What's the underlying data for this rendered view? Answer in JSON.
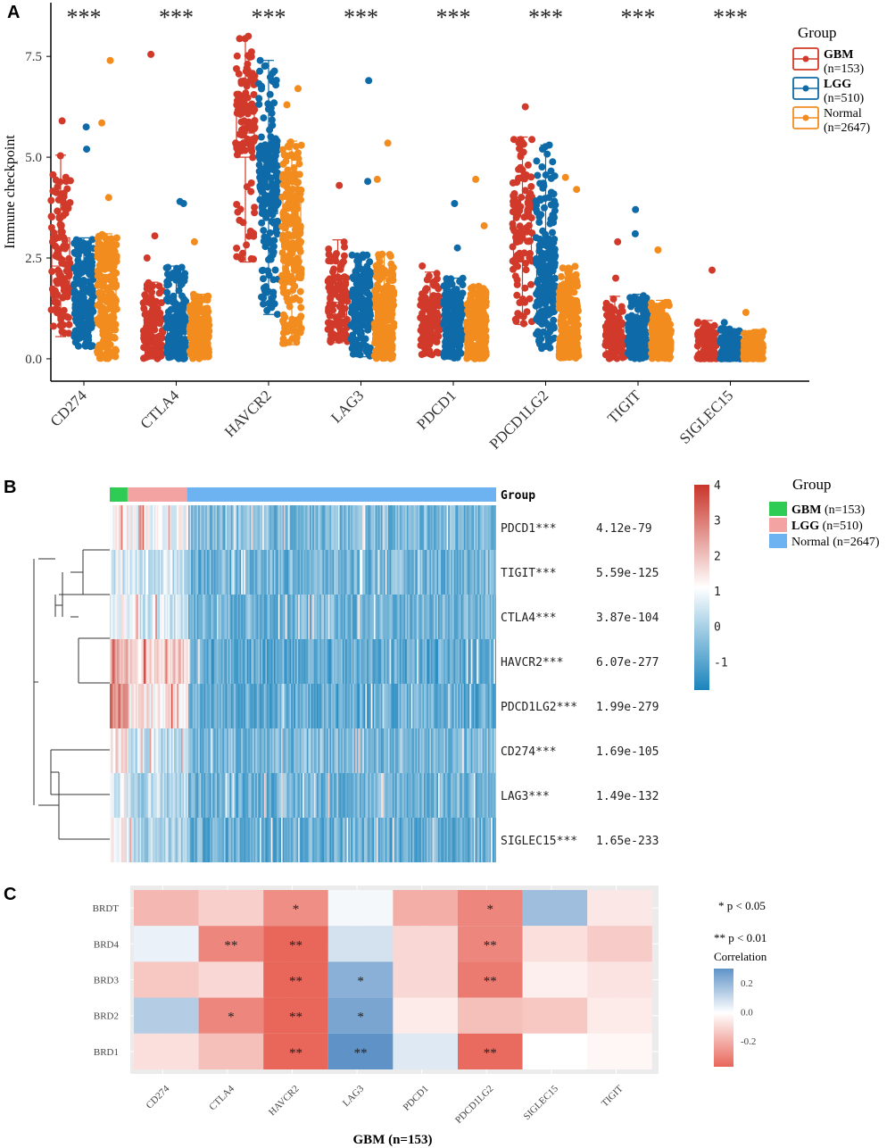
{
  "panels": {
    "a": "A",
    "b": "B",
    "c": "C"
  },
  "colors": {
    "GBM": "#d13a2a",
    "LGG": "#0f6aa8",
    "Normal": "#f28c1e",
    "GBM_bar": "#2ecc55",
    "LGG_bar": "#f4a3a3",
    "Normal_bar": "#6db3f2",
    "heat_low": "#1b84bd",
    "heat_mid": "#ffffff",
    "heat_high": "#c9352a",
    "corr_low": "#e8665a",
    "corr_mid": "#ffffff",
    "corr_high": "#5f93c8"
  },
  "chart_data": [
    {
      "id": "A",
      "type": "scatter",
      "title": "",
      "ylabel": "Immune checkpoint",
      "xlabel": "",
      "ylim": [
        -0.4,
        8.5
      ],
      "yticks": [
        "0.0",
        "2.5",
        "5.0",
        "7.5"
      ],
      "ytick_values": [
        0,
        2.5,
        5,
        7.5
      ],
      "categories": [
        "CD274",
        "CTLA4",
        "HAVCR2",
        "LAG3",
        "PDCD1",
        "PDCD1LG2",
        "TIGIT",
        "SIGLEC15"
      ],
      "significance": [
        "***",
        "***",
        "***",
        "***",
        "***",
        "***",
        "***",
        "***"
      ],
      "legend": {
        "title": "Group",
        "position": "right",
        "entries": [
          {
            "name": "GBM",
            "n": "(n=153)"
          },
          {
            "name": "LGG",
            "n": "(n=510)"
          },
          {
            "name": "Normal",
            "n": "(n=2647)"
          }
        ]
      },
      "series": [
        {
          "name": "GBM",
          "min": [
            0.55,
            0.0,
            2.4,
            0.4,
            0.1,
            0.85,
            0.0,
            0.0
          ],
          "q1": [
            1.5,
            0.3,
            5.0,
            0.9,
            0.5,
            2.4,
            0.2,
            0.1
          ],
          "median": [
            2.3,
            0.6,
            5.6,
            1.4,
            0.9,
            3.2,
            0.5,
            0.3
          ],
          "q3": [
            3.0,
            1.1,
            6.3,
            2.0,
            1.5,
            4.0,
            0.9,
            0.55
          ],
          "max": [
            5.05,
            1.9,
            7.95,
            2.95,
            2.15,
            5.5,
            1.55,
            0.95
          ],
          "outliers": [
            [
              5.9
            ],
            [
              7.55,
              3.05,
              2.5
            ],
            [
              8.0
            ],
            [
              4.3
            ],
            [
              2.3
            ],
            [
              6.25
            ],
            [
              2.9,
              2.0
            ],
            [
              2.2
            ]
          ]
        },
        {
          "name": "LGG",
          "min": [
            0.3,
            0.0,
            1.1,
            0.05,
            0.0,
            0.25,
            0.0,
            0.0
          ],
          "q1": [
            0.9,
            0.3,
            3.6,
            0.8,
            0.4,
            1.1,
            0.2,
            0.05
          ],
          "median": [
            1.4,
            0.6,
            4.4,
            1.2,
            0.8,
            1.9,
            0.5,
            0.2
          ],
          "q3": [
            2.2,
            1.0,
            5.2,
            1.7,
            1.3,
            2.8,
            0.9,
            0.4
          ],
          "max": [
            3.0,
            2.3,
            7.4,
            2.6,
            2.0,
            5.3,
            1.6,
            0.75
          ],
          "outliers": [
            [
              5.75,
              5.2
            ],
            [
              3.9,
              3.85
            ],
            [
              1.5
            ],
            [
              6.9,
              4.4
            ],
            [
              3.85,
              2.75
            ],
            [
              5.3
            ],
            [
              3.7,
              3.1
            ],
            [
              0.9
            ]
          ]
        },
        {
          "name": "Normal",
          "min": [
            0.0,
            0.0,
            0.35,
            0.0,
            0.0,
            0.0,
            0.0,
            0.0
          ],
          "q1": [
            0.8,
            0.3,
            2.0,
            0.5,
            0.3,
            0.3,
            0.2,
            0.05
          ],
          "median": [
            1.6,
            0.6,
            3.0,
            1.0,
            0.7,
            0.8,
            0.5,
            0.2
          ],
          "q3": [
            2.4,
            0.9,
            4.0,
            1.6,
            1.1,
            1.4,
            0.8,
            0.35
          ],
          "max": [
            3.1,
            1.6,
            5.4,
            2.6,
            1.8,
            2.3,
            1.45,
            0.7
          ],
          "outliers": [
            [
              7.4,
              5.85,
              4.0
            ],
            [
              2.9
            ],
            [
              6.7,
              6.3
            ],
            [
              5.35,
              4.45
            ],
            [
              4.45,
              3.3
            ],
            [
              4.5,
              4.2
            ],
            [
              2.7
            ],
            [
              1.15
            ]
          ]
        }
      ]
    },
    {
      "id": "B",
      "type": "heatmap",
      "annotation_label": "Group",
      "legend": {
        "title": "Group",
        "position": "right",
        "entries": [
          {
            "name": "GBM",
            "n": "(n=153)"
          },
          {
            "name": "LGG",
            "n": "(n=510)"
          },
          {
            "name": "Normal",
            "n": "(n=2647)"
          }
        ]
      },
      "group_fractions": {
        "GBM": 0.046,
        "LGG": 0.154,
        "Normal": 0.8
      },
      "colorbar_ticks": [
        "4",
        "3",
        "2",
        "1",
        "0",
        "-1"
      ],
      "colorbar_values": [
        4,
        3,
        2,
        1,
        0,
        -1
      ],
      "colorbar_range": [
        -1.8,
        4
      ],
      "rows": [
        {
          "gene": "PDCD1***",
          "pvalue": "4.12e-79",
          "gbm_level": 1.2,
          "lgg_level": 0.9,
          "normal_level": -0.6
        },
        {
          "gene": "TIGIT***",
          "pvalue": "5.59e-125",
          "gbm_level": 0.6,
          "lgg_level": 0.4,
          "normal_level": -0.7
        },
        {
          "gene": "CTLA4***",
          "pvalue": "3.87e-104",
          "gbm_level": 1.0,
          "lgg_level": 0.6,
          "normal_level": -0.7
        },
        {
          "gene": "HAVCR2***",
          "pvalue": "6.07e-277",
          "gbm_level": 2.2,
          "lgg_level": 1.6,
          "normal_level": -0.9
        },
        {
          "gene": "PDCD1LG2***",
          "pvalue": "1.99e-279",
          "gbm_level": 2.8,
          "lgg_level": 1.3,
          "normal_level": -0.9
        },
        {
          "gene": "CD274***",
          "pvalue": "1.69e-105",
          "gbm_level": 1.3,
          "lgg_level": 0.2,
          "normal_level": -0.6
        },
        {
          "gene": "LAG3***",
          "pvalue": "1.49e-132",
          "gbm_level": 0.5,
          "lgg_level": 0.1,
          "normal_level": -0.7
        },
        {
          "gene": "SIGLEC15***",
          "pvalue": "1.65e-233",
          "gbm_level": 1.0,
          "lgg_level": 0.0,
          "normal_level": -0.8
        }
      ]
    },
    {
      "id": "C",
      "type": "heatmap",
      "title": "GBM (n=153)",
      "columns": [
        "CD274",
        "CTLA4",
        "HAVCR2",
        "LAG3",
        "PDCD1",
        "PDCD1LG2",
        "SIGLEC15",
        "TIGIT"
      ],
      "rows": [
        "BRDT",
        "BRD4",
        "BRD3",
        "BRD2",
        "BRD1"
      ],
      "values": [
        [
          -0.18,
          -0.12,
          -0.28,
          0.02,
          -0.2,
          -0.3,
          0.18,
          -0.06
        ],
        [
          0.04,
          -0.3,
          -0.42,
          0.08,
          -0.1,
          -0.3,
          -0.08,
          -0.13
        ],
        [
          -0.14,
          -0.1,
          -0.4,
          0.22,
          -0.1,
          -0.33,
          -0.04,
          -0.07
        ],
        [
          0.14,
          -0.3,
          -0.4,
          0.25,
          -0.05,
          -0.16,
          -0.14,
          -0.05
        ],
        [
          -0.08,
          -0.16,
          -0.4,
          0.38,
          0.06,
          -0.37,
          0.0,
          -0.02
        ]
      ],
      "stars": [
        [
          "",
          "",
          "*",
          "",
          "",
          "*",
          "",
          ""
        ],
        [
          "",
          "**",
          "**",
          "",
          "",
          "**",
          "",
          ""
        ],
        [
          "",
          "",
          "**",
          "*",
          "",
          "**",
          "",
          ""
        ],
        [
          "",
          "*",
          "**",
          "*",
          "",
          "",
          "",
          ""
        ],
        [
          "",
          "",
          "**",
          "**",
          "",
          "**",
          "",
          ""
        ]
      ],
      "significance_legend": [
        "* p < 0.05",
        "** p < 0.01"
      ],
      "colorbar_title": "Correlation",
      "colorbar_ticks": [
        "0.2",
        "0.0",
        "-0.2"
      ],
      "colorbar_values": [
        0.2,
        0.0,
        -0.2
      ],
      "colorbar_range": [
        -0.38,
        0.3
      ]
    }
  ]
}
